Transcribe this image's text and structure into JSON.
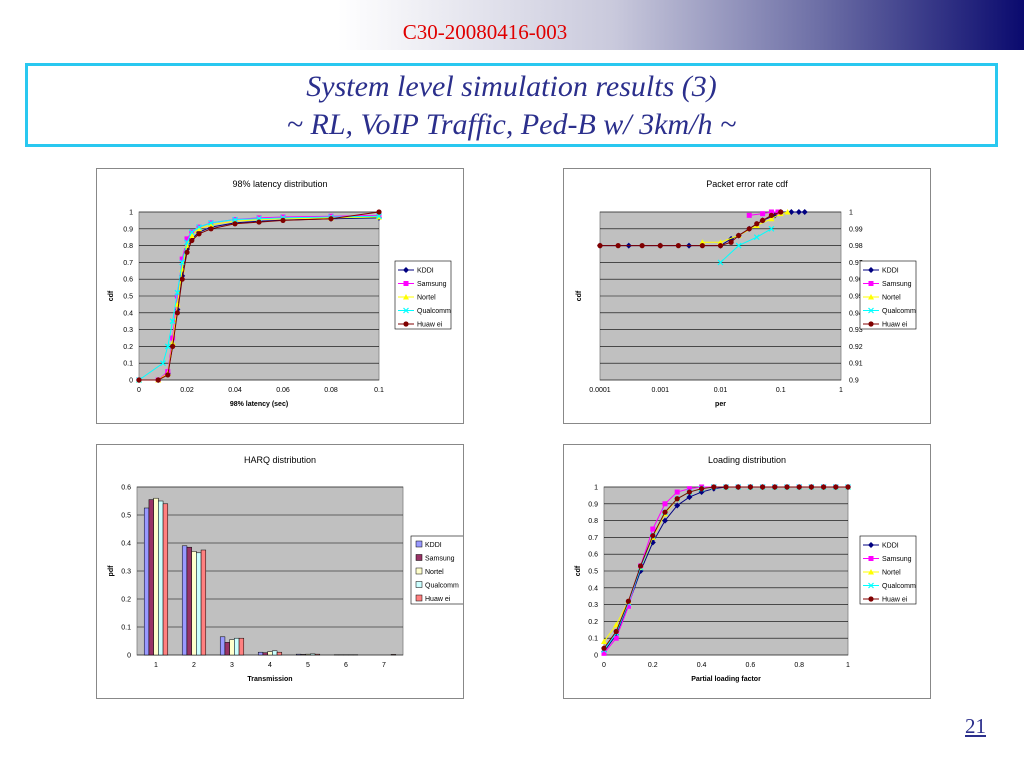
{
  "header": {
    "doc_id": "C30-20080416-003",
    "page_number": "21"
  },
  "title": {
    "line1": "System level simulation results (3)",
    "line2": "~ RL, VoIP Traffic, Ped-B w/ 3km/h ~"
  },
  "colors": {
    "plot_bg": "#c0c0c0",
    "title_border": "#29c8f0",
    "title_text": "#2b2f8c",
    "doc_id": "#e00000"
  },
  "legend_entries": [
    "KDDI",
    "Samsung",
    "Nortel",
    "Qualcomm",
    "Huaw ei"
  ],
  "chart_data": [
    {
      "type": "line",
      "title": "98% latency distribution",
      "xlabel": "98% latency (sec)",
      "ylabel": "cdf",
      "xlim": [
        0,
        0.1
      ],
      "ylim": [
        0,
        1
      ],
      "x_ticks": [
        "0",
        "0.02",
        "0.04",
        "0.06",
        "0.08",
        "0.1"
      ],
      "y_ticks": [
        "0",
        "0.1",
        "0.2",
        "0.3",
        "0.4",
        "0.5",
        "0.6",
        "0.7",
        "0.8",
        "0.9",
        "1"
      ],
      "grid": true,
      "legend": "right",
      "series": [
        {
          "name": "KDDI",
          "color": "#000080",
          "marker": "diamond",
          "x": [
            0,
            0.008,
            0.012,
            0.014,
            0.016,
            0.018,
            0.02,
            0.022,
            0.025,
            0.03,
            0.04,
            0.05,
            0.06,
            0.08,
            0.1
          ],
          "y": [
            0,
            0,
            0.04,
            0.2,
            0.42,
            0.62,
            0.78,
            0.84,
            0.88,
            0.91,
            0.935,
            0.945,
            0.952,
            0.96,
            0.965
          ]
        },
        {
          "name": "Samsung",
          "color": "#ff00ff",
          "marker": "square",
          "x": [
            0,
            0.008,
            0.012,
            0.014,
            0.016,
            0.018,
            0.02,
            0.022,
            0.025,
            0.03,
            0.04,
            0.05,
            0.06,
            0.08,
            0.1
          ],
          "y": [
            0,
            0,
            0.05,
            0.25,
            0.5,
            0.72,
            0.84,
            0.88,
            0.91,
            0.935,
            0.955,
            0.965,
            0.97,
            0.975,
            0.98
          ]
        },
        {
          "name": "Nortel",
          "color": "#ffff00",
          "marker": "triangle",
          "x": [
            0,
            0.008,
            0.012,
            0.014,
            0.016,
            0.018,
            0.02,
            0.022,
            0.025,
            0.03,
            0.04,
            0.05,
            0.06,
            0.08,
            0.1
          ],
          "y": [
            0,
            0,
            0.04,
            0.22,
            0.45,
            0.66,
            0.8,
            0.86,
            0.9,
            0.925,
            0.945,
            0.955,
            0.96,
            0.965,
            0.97
          ]
        },
        {
          "name": "Qualcomm",
          "color": "#00ffff",
          "marker": "x",
          "x": [
            0,
            0.01,
            0.012,
            0.014,
            0.016,
            0.018,
            0.02,
            0.022,
            0.025,
            0.03,
            0.04,
            0.05,
            0.06,
            0.08,
            0.1
          ],
          "y": [
            0,
            0.1,
            0.2,
            0.35,
            0.52,
            0.7,
            0.82,
            0.88,
            0.91,
            0.935,
            0.955,
            0.96,
            0.965,
            0.97,
            0.975
          ]
        },
        {
          "name": "Huaw ei",
          "color": "#800000",
          "marker": "circle",
          "x": [
            0,
            0.008,
            0.012,
            0.014,
            0.016,
            0.018,
            0.02,
            0.022,
            0.025,
            0.03,
            0.04,
            0.05,
            0.06,
            0.08,
            0.1
          ],
          "y": [
            0,
            0,
            0.03,
            0.2,
            0.4,
            0.6,
            0.76,
            0.83,
            0.87,
            0.9,
            0.93,
            0.94,
            0.95,
            0.96,
            1.0
          ]
        }
      ]
    },
    {
      "type": "line",
      "title": "Packet error rate cdf",
      "xlabel": "per",
      "ylabel": "cdf",
      "x_scale": "log",
      "xlim": [
        0.0001,
        1
      ],
      "ylim": [
        0.9,
        1
      ],
      "x_ticks": [
        "0.0001",
        "0.001",
        "0.01",
        "0.1",
        "1"
      ],
      "y_ticks": [
        "0.9",
        "0.91",
        "0.92",
        "0.93",
        "0.94",
        "0.95",
        "0.96",
        "0.97",
        "0.98",
        "0.99",
        "1"
      ],
      "grid": true,
      "legend": "right",
      "series": [
        {
          "name": "KDDI",
          "color": "#000080",
          "marker": "diamond",
          "x": [
            0.0001,
            0.0003,
            0.001,
            0.003,
            0.01,
            0.015,
            0.02,
            0.03,
            0.05,
            0.08,
            0.1,
            0.15,
            0.2,
            0.25
          ],
          "y": [
            0.98,
            0.98,
            0.98,
            0.98,
            0.98,
            0.984,
            0.986,
            0.99,
            0.995,
            0.998,
            1.0,
            1.0,
            1.0,
            1.0
          ]
        },
        {
          "name": "Samsung",
          "color": "#ff00ff",
          "marker": "square",
          "x": [
            0.03,
            0.05,
            0.07,
            0.09
          ],
          "y": [
            0.998,
            0.999,
            1.0,
            1.0
          ]
        },
        {
          "name": "Nortel",
          "color": "#ffff00",
          "marker": "triangle",
          "x": [
            0.005,
            0.01,
            0.02,
            0.04,
            0.07,
            0.1,
            0.13
          ],
          "y": [
            0.982,
            0.982,
            0.986,
            0.992,
            0.996,
            0.999,
            1.0
          ]
        },
        {
          "name": "Qualcomm",
          "color": "#00ffff",
          "marker": "x",
          "x": [
            0.01,
            0.02,
            0.04,
            0.07
          ],
          "y": [
            0.97,
            0.98,
            0.985,
            0.99
          ]
        },
        {
          "name": "Huaw ei",
          "color": "#800000",
          "marker": "circle",
          "x": [
            0.0001,
            0.0002,
            0.0005,
            0.001,
            0.002,
            0.005,
            0.01,
            0.015,
            0.02,
            0.03,
            0.04,
            0.05,
            0.07,
            0.1
          ],
          "y": [
            0.98,
            0.98,
            0.98,
            0.98,
            0.98,
            0.98,
            0.98,
            0.982,
            0.986,
            0.99,
            0.993,
            0.995,
            0.998,
            1.0
          ]
        }
      ]
    },
    {
      "type": "bar",
      "title": "HARQ distribution",
      "xlabel": "Transmission",
      "ylabel": "pdf",
      "categories": [
        "1",
        "2",
        "3",
        "4",
        "5",
        "6",
        "7"
      ],
      "ylim": [
        0,
        0.6
      ],
      "y_ticks": [
        "0",
        "0.1",
        "0.2",
        "0.3",
        "0.4",
        "0.5",
        "0.6"
      ],
      "grid": true,
      "legend": "right",
      "series": [
        {
          "name": "KDDI",
          "color": "#9999ff",
          "values": [
            0.525,
            0.39,
            0.065,
            0.01,
            0.003,
            0.001,
            0.0
          ]
        },
        {
          "name": "Samsung",
          "color": "#993366",
          "values": [
            0.555,
            0.385,
            0.045,
            0.008,
            0.002,
            0.001,
            0.0
          ]
        },
        {
          "name": "Nortel",
          "color": "#ffffcc",
          "values": [
            0.56,
            0.37,
            0.055,
            0.012,
            0.003,
            0.001,
            0.0
          ]
        },
        {
          "name": "Qualcomm",
          "color": "#ccffff",
          "values": [
            0.55,
            0.365,
            0.06,
            0.015,
            0.004,
            0.001,
            0.0
          ]
        },
        {
          "name": "Huaw ei",
          "color": "#ff8080",
          "values": [
            0.54,
            0.375,
            0.06,
            0.01,
            0.003,
            0.001,
            0.002
          ]
        }
      ]
    },
    {
      "type": "line",
      "title": "Loading distribution",
      "xlabel": "Partial loading factor",
      "ylabel": "cdf",
      "xlim": [
        0,
        1
      ],
      "ylim": [
        0,
        1
      ],
      "x_ticks": [
        "0",
        "0.2",
        "0.4",
        "0.6",
        "0.8",
        "1"
      ],
      "y_ticks": [
        "0",
        "0.1",
        "0.2",
        "0.3",
        "0.4",
        "0.5",
        "0.6",
        "0.7",
        "0.8",
        "0.9",
        "1"
      ],
      "grid": true,
      "legend": "right",
      "series": [
        {
          "name": "KDDI",
          "color": "#000080",
          "marker": "diamond",
          "x": [
            0,
            0.05,
            0.1,
            0.15,
            0.2,
            0.25,
            0.3,
            0.35,
            0.4,
            0.45,
            0.5,
            0.55,
            0.6,
            0.65,
            0.7,
            0.75,
            0.8,
            0.85,
            0.9,
            0.95,
            1.0
          ],
          "y": [
            0.02,
            0.12,
            0.3,
            0.5,
            0.67,
            0.8,
            0.89,
            0.94,
            0.97,
            0.99,
            1.0,
            1.0,
            1.0,
            1.0,
            1.0,
            1.0,
            1.0,
            1.0,
            1.0,
            1.0,
            1.0
          ]
        },
        {
          "name": "Samsung",
          "color": "#ff00ff",
          "marker": "square",
          "x": [
            0,
            0.05,
            0.1,
            0.15,
            0.2,
            0.25,
            0.3,
            0.35,
            0.4,
            0.45,
            0.5,
            0.55,
            0.6,
            0.65,
            0.7,
            0.75,
            0.8,
            0.85,
            0.9,
            0.95,
            1.0
          ],
          "y": [
            0.01,
            0.1,
            0.29,
            0.53,
            0.75,
            0.9,
            0.97,
            0.99,
            1.0,
            1.0,
            1.0,
            1.0,
            1.0,
            1.0,
            1.0,
            1.0,
            1.0,
            1.0,
            1.0,
            1.0,
            1.0
          ]
        },
        {
          "name": "Nortel",
          "color": "#ffff00",
          "marker": "triangle",
          "x": [
            0,
            0.05,
            0.1,
            0.15,
            0.2,
            0.25,
            0.3,
            0.35,
            0.4,
            0.45,
            0.5,
            0.55,
            0.6,
            0.65,
            0.7,
            0.75,
            0.8,
            0.85,
            0.9,
            0.95,
            1.0
          ],
          "y": [
            0.08,
            0.18,
            0.32,
            0.52,
            0.7,
            0.84,
            0.93,
            0.97,
            0.99,
            1.0,
            1.0,
            1.0,
            1.0,
            1.0,
            1.0,
            1.0,
            1.0,
            1.0,
            1.0,
            1.0,
            1.0
          ]
        },
        {
          "name": "Qualcomm",
          "color": "#00ffff",
          "marker": "x",
          "x": [
            0,
            0.05,
            0.1,
            0.15,
            0.2,
            0.25,
            0.3,
            0.35,
            0.4,
            0.45,
            0.5,
            0.55,
            0.6,
            0.65,
            0.7,
            0.75,
            0.8,
            0.85,
            0.9,
            0.95,
            1.0
          ],
          "y": [
            0.03,
            0.13,
            0.31,
            0.52,
            0.71,
            0.85,
            0.93,
            0.97,
            0.99,
            1.0,
            1.0,
            1.0,
            1.0,
            1.0,
            1.0,
            1.0,
            1.0,
            1.0,
            1.0,
            1.0,
            1.0
          ]
        },
        {
          "name": "Huaw ei",
          "color": "#800000",
          "marker": "circle",
          "x": [
            0,
            0.05,
            0.1,
            0.15,
            0.2,
            0.25,
            0.3,
            0.35,
            0.4,
            0.45,
            0.5,
            0.55,
            0.6,
            0.65,
            0.7,
            0.75,
            0.8,
            0.85,
            0.9,
            0.95,
            1.0
          ],
          "y": [
            0.04,
            0.14,
            0.32,
            0.53,
            0.71,
            0.85,
            0.93,
            0.97,
            0.99,
            1.0,
            1.0,
            1.0,
            1.0,
            1.0,
            1.0,
            1.0,
            1.0,
            1.0,
            1.0,
            1.0,
            1.0
          ]
        }
      ]
    }
  ]
}
